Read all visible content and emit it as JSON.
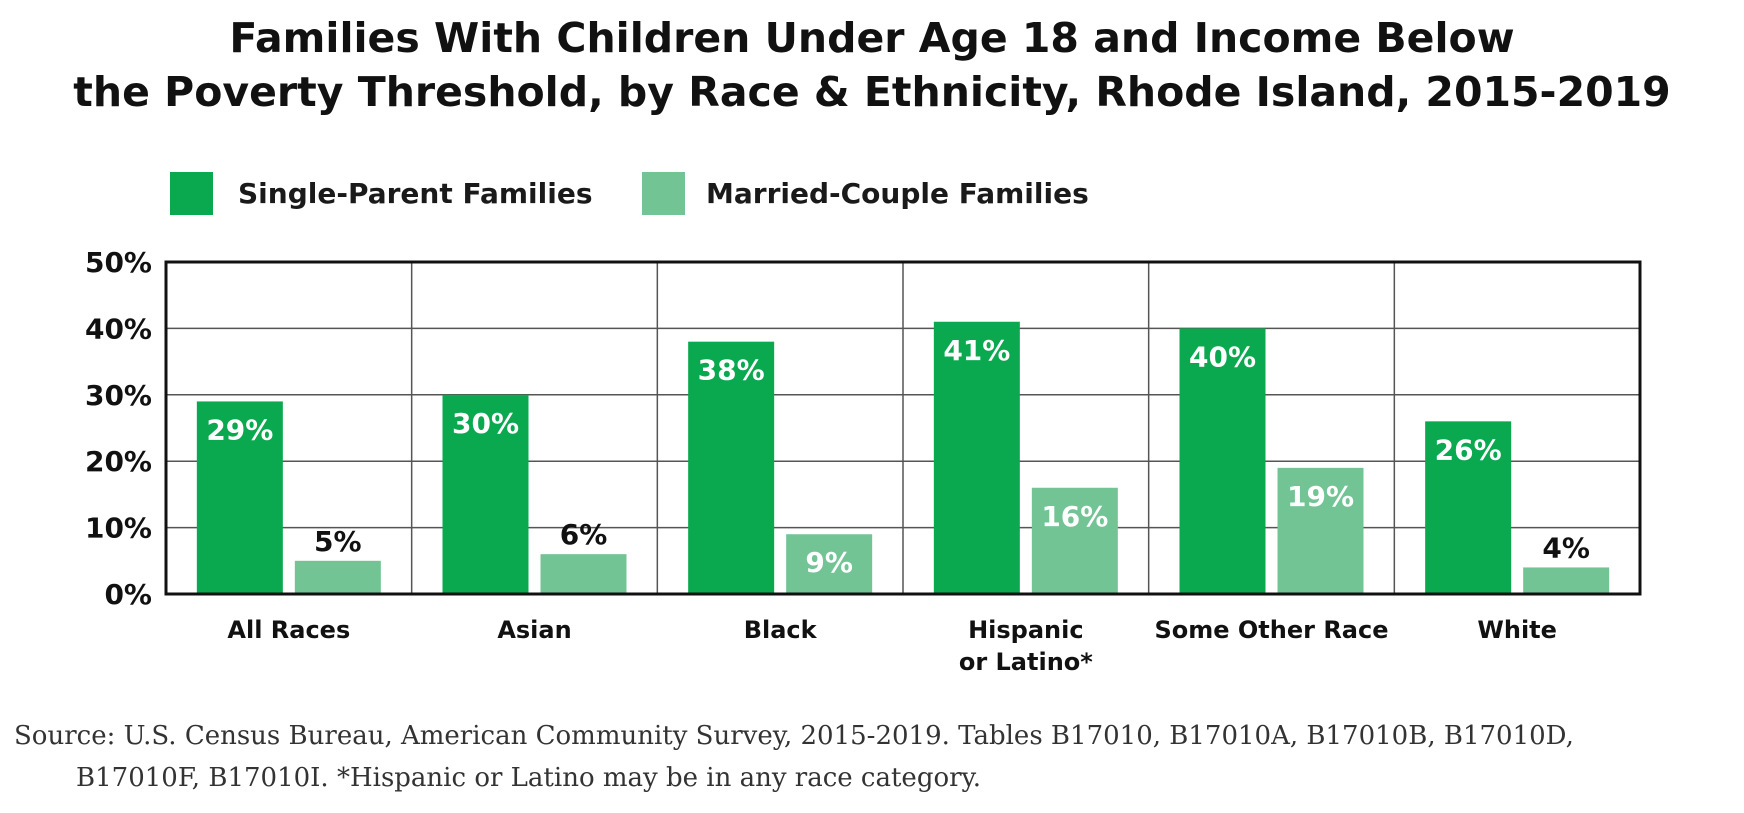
{
  "chart_data": {
    "type": "bar",
    "title_lines": [
      "Families With Children Under Age 18 and Income Below",
      "the Poverty Threshold, by Race & Ethnicity, Rhode Island, 2015-2019"
    ],
    "categories": [
      [
        "All Races"
      ],
      [
        "Asian"
      ],
      [
        "Black"
      ],
      [
        "Hispanic",
        "or Latino*"
      ],
      [
        "Some Other Race"
      ],
      [
        "White"
      ]
    ],
    "series": [
      {
        "name": "Single-Parent Families",
        "color": "#0aa84f",
        "label_color": "#ffffff",
        "values": [
          29,
          30,
          38,
          41,
          40,
          26
        ],
        "labels": [
          "29%",
          "30%",
          "38%",
          "41%",
          "40%",
          "26%"
        ]
      },
      {
        "name": "Married-Couple Families",
        "color": "#73c495",
        "label_color": "#ffffff",
        "values": [
          5,
          6,
          9,
          16,
          19,
          4
        ],
        "labels": [
          "5%",
          "6%",
          "9%",
          "16%",
          "19%",
          "4%"
        ]
      }
    ],
    "y_ticks": [
      "0%",
      "10%",
      "20%",
      "30%",
      "40%",
      "50%"
    ],
    "ylim": [
      0,
      50
    ],
    "grid": true,
    "legend_position": "top-left",
    "xlabel": "",
    "ylabel": ""
  },
  "source": {
    "line1": "Source: U.S. Census Bureau, American Community Survey, 2015-2019. Tables B17010, B17010A, B17010B, B17010D,",
    "line2": "B17010F, B17010I. *Hispanic or Latino may be in any race category."
  }
}
